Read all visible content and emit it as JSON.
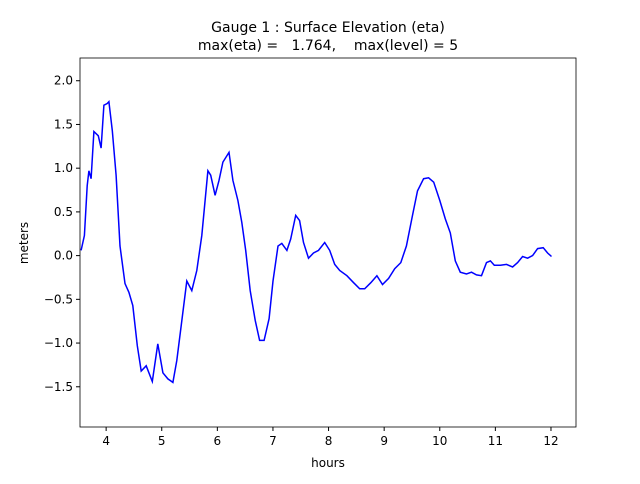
{
  "chart_data": {
    "type": "line",
    "title": "Gauge 1 : Surface Elevation (eta)",
    "subtitle": "max(eta) =   1.764,    max(level) = 5",
    "x_label": "hours",
    "y_label": "meters",
    "xlim": [
      3.53,
      12.45
    ],
    "ylim": [
      -1.96,
      2.26
    ],
    "xticks": [
      4,
      5,
      6,
      7,
      8,
      9,
      10,
      11,
      12
    ],
    "yticks": [
      -1.5,
      -1.0,
      -0.5,
      0.0,
      0.5,
      1.0,
      1.5,
      2.0
    ],
    "ytick_labels": [
      "−1.5",
      "−1.0",
      "−0.5",
      "0.0",
      "0.5",
      "1.0",
      "1.5",
      "2.0"
    ],
    "x": [
      3.55,
      3.61,
      3.66,
      3.69,
      3.73,
      3.78,
      3.86,
      3.91,
      3.96,
      4.02,
      4.05,
      4.11,
      4.18,
      4.25,
      4.34,
      4.41,
      4.48,
      4.56,
      4.63,
      4.72,
      4.83,
      4.93,
      5.02,
      5.11,
      5.2,
      5.27,
      5.35,
      5.45,
      5.54,
      5.63,
      5.72,
      5.83,
      5.88,
      5.96,
      6.03,
      6.1,
      6.21,
      6.28,
      6.37,
      6.44,
      6.51,
      6.59,
      6.68,
      6.76,
      6.84,
      6.93,
      7.0,
      7.09,
      7.16,
      7.25,
      7.32,
      7.41,
      7.48,
      7.55,
      7.64,
      7.73,
      7.82,
      7.93,
      8.02,
      8.11,
      8.2,
      8.33,
      8.45,
      8.56,
      8.65,
      8.76,
      8.87,
      8.97,
      9.08,
      9.19,
      9.3,
      9.4,
      9.51,
      9.6,
      9.71,
      9.8,
      9.89,
      10.0,
      10.1,
      10.19,
      10.28,
      10.37,
      10.48,
      10.57,
      10.66,
      10.75,
      10.84,
      10.91,
      10.98,
      11.09,
      11.2,
      11.31,
      11.4,
      11.49,
      11.58,
      11.67,
      11.76,
      11.86,
      11.94,
      12.01
    ],
    "series": [
      {
        "name": "eta",
        "color": "#0000ff",
        "values": [
          0.06,
          0.23,
          0.8,
          0.97,
          0.88,
          1.42,
          1.37,
          1.23,
          1.72,
          1.74,
          1.76,
          1.43,
          0.92,
          0.11,
          -0.32,
          -0.42,
          -0.57,
          -1.03,
          -1.32,
          -1.26,
          -1.44,
          -1.01,
          -1.34,
          -1.41,
          -1.45,
          -1.2,
          -0.8,
          -0.29,
          -0.4,
          -0.17,
          0.23,
          0.97,
          0.92,
          0.69,
          0.86,
          1.07,
          1.18,
          0.86,
          0.63,
          0.38,
          0.06,
          -0.4,
          -0.74,
          -0.97,
          -0.97,
          -0.72,
          -0.29,
          0.11,
          0.14,
          0.06,
          0.19,
          0.46,
          0.4,
          0.15,
          -0.03,
          0.03,
          0.06,
          0.15,
          0.06,
          -0.1,
          -0.17,
          -0.23,
          -0.31,
          -0.38,
          -0.38,
          -0.31,
          -0.23,
          -0.33,
          -0.26,
          -0.15,
          -0.08,
          0.11,
          0.46,
          0.74,
          0.88,
          0.89,
          0.84,
          0.63,
          0.42,
          0.26,
          -0.06,
          -0.19,
          -0.21,
          -0.19,
          -0.22,
          -0.23,
          -0.08,
          -0.06,
          -0.11,
          -0.11,
          -0.1,
          -0.13,
          -0.08,
          -0.01,
          -0.03,
          0.0,
          0.08,
          0.09,
          0.03,
          -0.01
        ]
      }
    ]
  }
}
